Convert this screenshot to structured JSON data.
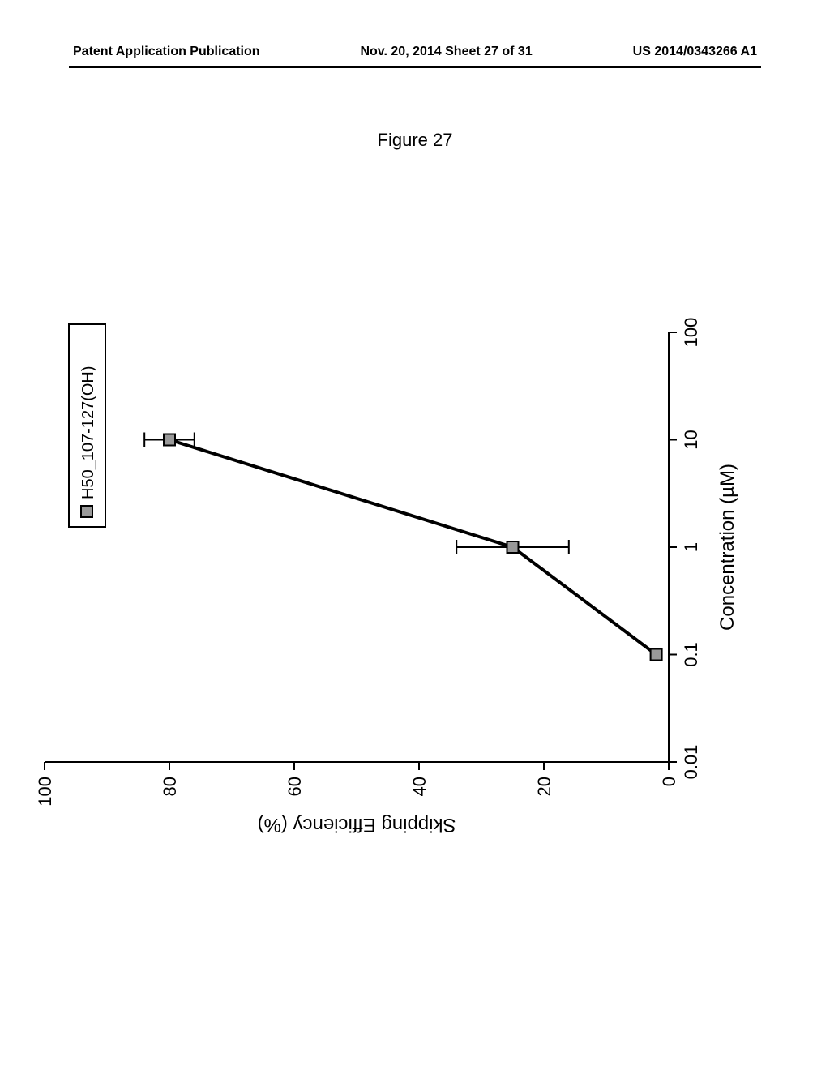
{
  "header": {
    "left": "Patent Application Publication",
    "center": "Nov. 20, 2014  Sheet 27 of 31",
    "right": "US 2014/0343266 A1"
  },
  "figure_title": "Figure 27",
  "chart": {
    "type": "line-scatter",
    "x_axis": {
      "label": "Concentration (µM)",
      "scale": "log",
      "ticks": [
        0.01,
        0.1,
        1,
        10,
        100
      ],
      "tick_labels": [
        "0.01",
        "0.1",
        "1",
        "10",
        "100"
      ],
      "label_fontsize": 24,
      "tick_fontsize": 22
    },
    "y_axis": {
      "label": "Skipping Efficiency (%)",
      "scale": "linear",
      "min": 0,
      "max": 100,
      "ticks": [
        0,
        20,
        40,
        60,
        80,
        100
      ],
      "label_fontsize": 24,
      "tick_fontsize": 22
    },
    "series": {
      "name": "H50_107-127(OH)",
      "marker_color": "#999999",
      "marker_stroke": "#000000",
      "line_color": "#000000",
      "line_width": 4,
      "marker_size": 14,
      "points": [
        {
          "x": 0.1,
          "y": 2,
          "err": 0
        },
        {
          "x": 1,
          "y": 25,
          "err": 9
        },
        {
          "x": 10,
          "y": 80,
          "err": 4
        }
      ]
    },
    "legend": {
      "label": "H50_107-127(OH)",
      "fontsize": 20
    },
    "background_color": "#ffffff",
    "axis_color": "#000000"
  }
}
